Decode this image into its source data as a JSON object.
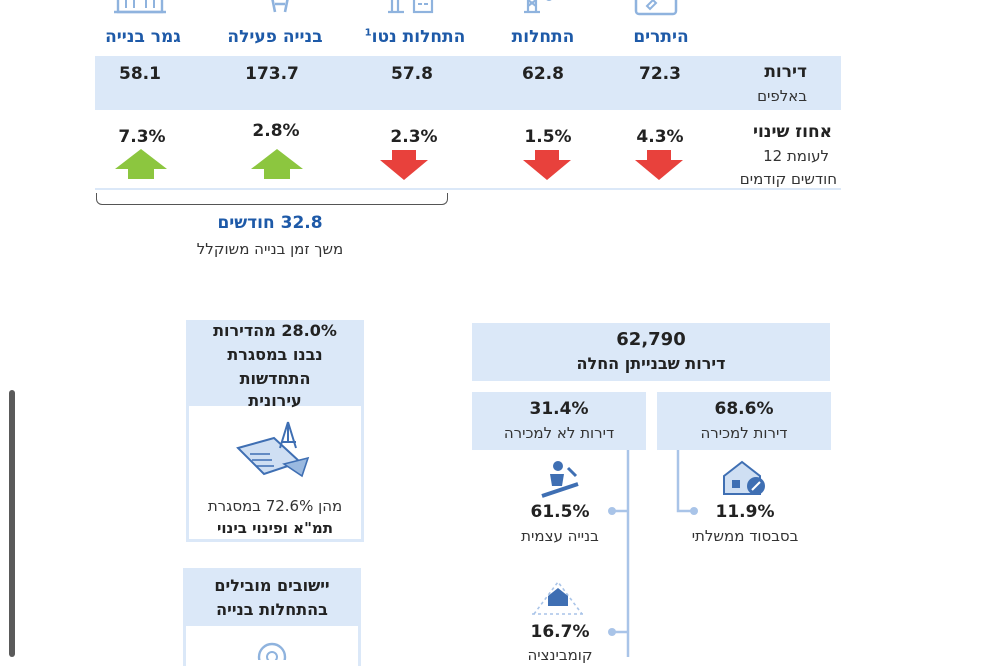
{
  "top_table": {
    "columns": [
      {
        "label": "היתרים",
        "value": "72.3",
        "change": "4.3%",
        "direction": "down",
        "icon": "permit-icon"
      },
      {
        "label": "התחלות",
        "value": "62.8",
        "change": "1.5%",
        "direction": "down",
        "icon": "crane-icon"
      },
      {
        "label": "התחלות נטו",
        "superscript": "1",
        "value": "57.8",
        "change": "2.3%",
        "direction": "down",
        "icon": "construction-icon"
      },
      {
        "label": "בנייה פעילה",
        "value": "173.7",
        "change": "2.8%",
        "direction": "up",
        "icon": "building-work-icon"
      },
      {
        "label": "גמר בנייה",
        "value": "58.1",
        "change": "7.3%",
        "direction": "up",
        "icon": "finished-building-icon"
      }
    ],
    "row1_label": "דירות",
    "row1_sublabel": "באלפים",
    "row2_label": "אחוז שינוי",
    "row2_sublabel_1": "לעומת 12",
    "row2_sublabel_2": "חודשים קודמים",
    "colors": {
      "down": "#e8413c",
      "up": "#8cc63f",
      "band": "#dbe8f8",
      "accent": "#1e5aa8"
    }
  },
  "duration": {
    "value": "32.8 חודשים",
    "label": "משך זמן בנייה משוקלל"
  },
  "urban_renewal": {
    "title_1": "28.0% מהדירות",
    "title_2": "נבנו במסגרת",
    "title_3": "התחדשות",
    "title_4": "עירונית",
    "note_1": "מהן 72.6% במסגרת",
    "note_2": "תמ\"א ופינוי בינוי",
    "icon": "blueprint-icon"
  },
  "leading_settlements": {
    "title_1": "יישובים מובילים",
    "title_2": "בהתחלות בנייה"
  },
  "starts_breakdown": {
    "total_value": "62,790",
    "total_label": "דירות שבנייתן החלה",
    "for_sale_pct": "68.6%",
    "for_sale_label": "דירות למכירה",
    "not_for_sale_pct": "31.4%",
    "not_for_sale_label": "דירות לא למכירה",
    "subsidized_pct": "11.9%",
    "subsidized_label": "בסבסוד ממשלתי",
    "self_build_pct": "61.5%",
    "self_build_label": "בנייה עצמית",
    "combination_pct": "16.7%",
    "combination_label": "קומבינציה"
  }
}
